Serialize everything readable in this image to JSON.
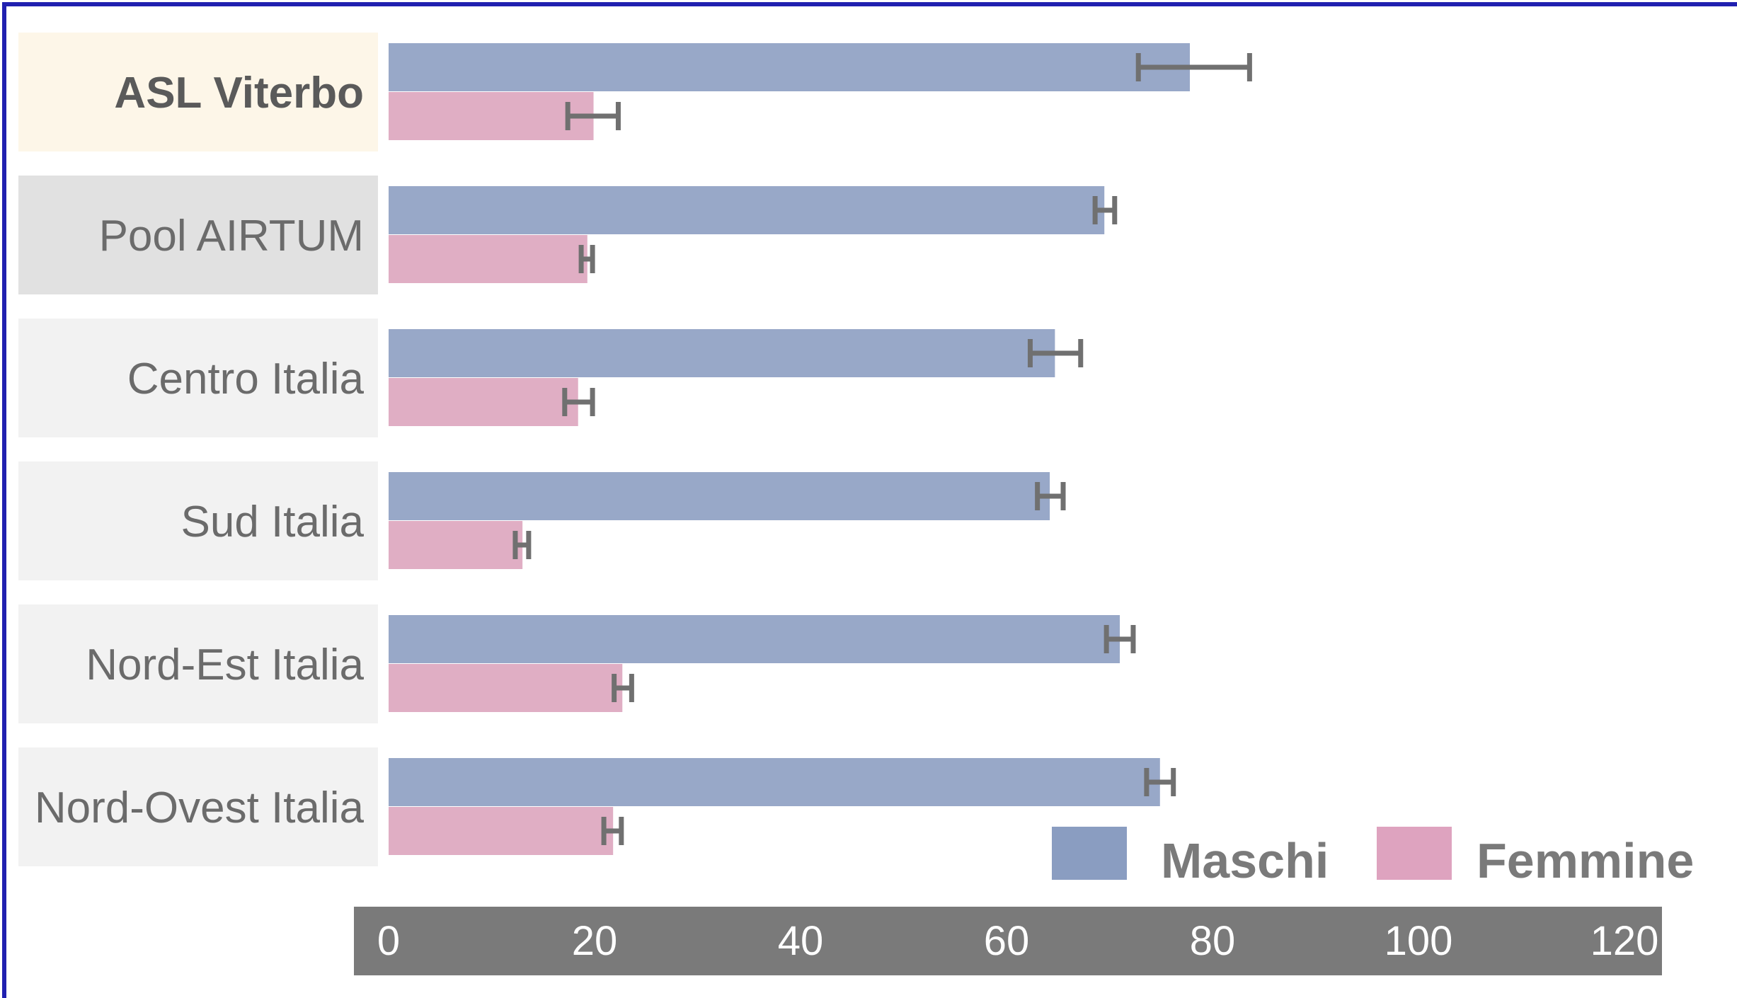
{
  "colors": {
    "males": "#98a8c8",
    "females": "#e0aec4",
    "error_bar": "#707070",
    "axis_band": "#7a7a7a",
    "label_bg_highlight": "#fdf6e8",
    "label_bg_pool": "#e1e1e1",
    "label_bg_default": "#f2f2f2",
    "frame_border": "#2020b0",
    "legend_males": "#8a9dc1",
    "legend_females": "#dea3bf"
  },
  "chart_data": {
    "type": "bar",
    "orientation": "horizontal",
    "categories": [
      "ASL Viterbo",
      "Pool AIRTUM",
      "Centro Italia",
      "Sud Italia",
      "Nord-Est Italia",
      "Nord-Ovest Italia"
    ],
    "highlight_category": "ASL Viterbo",
    "series": [
      {
        "name": "Maschi",
        "values": [
          77.8,
          69.5,
          64.7,
          64.2,
          71.0,
          74.9
        ],
        "ci_low": [
          72.8,
          68.6,
          62.3,
          63.0,
          69.7,
          73.6
        ],
        "ci_high": [
          83.6,
          70.5,
          67.2,
          65.5,
          72.3,
          76.2
        ]
      },
      {
        "name": "Femmine",
        "values": [
          19.9,
          19.3,
          18.4,
          13.0,
          22.7,
          21.8
        ],
        "ci_low": [
          17.4,
          18.7,
          17.1,
          12.3,
          21.9,
          20.9
        ],
        "ci_high": [
          22.3,
          19.8,
          19.8,
          13.6,
          23.6,
          22.6
        ]
      }
    ],
    "xlim": [
      0,
      120
    ],
    "xticks": [
      0,
      20,
      40,
      60,
      80,
      100,
      120
    ],
    "legend_position": "bottom-right",
    "grid": false
  }
}
